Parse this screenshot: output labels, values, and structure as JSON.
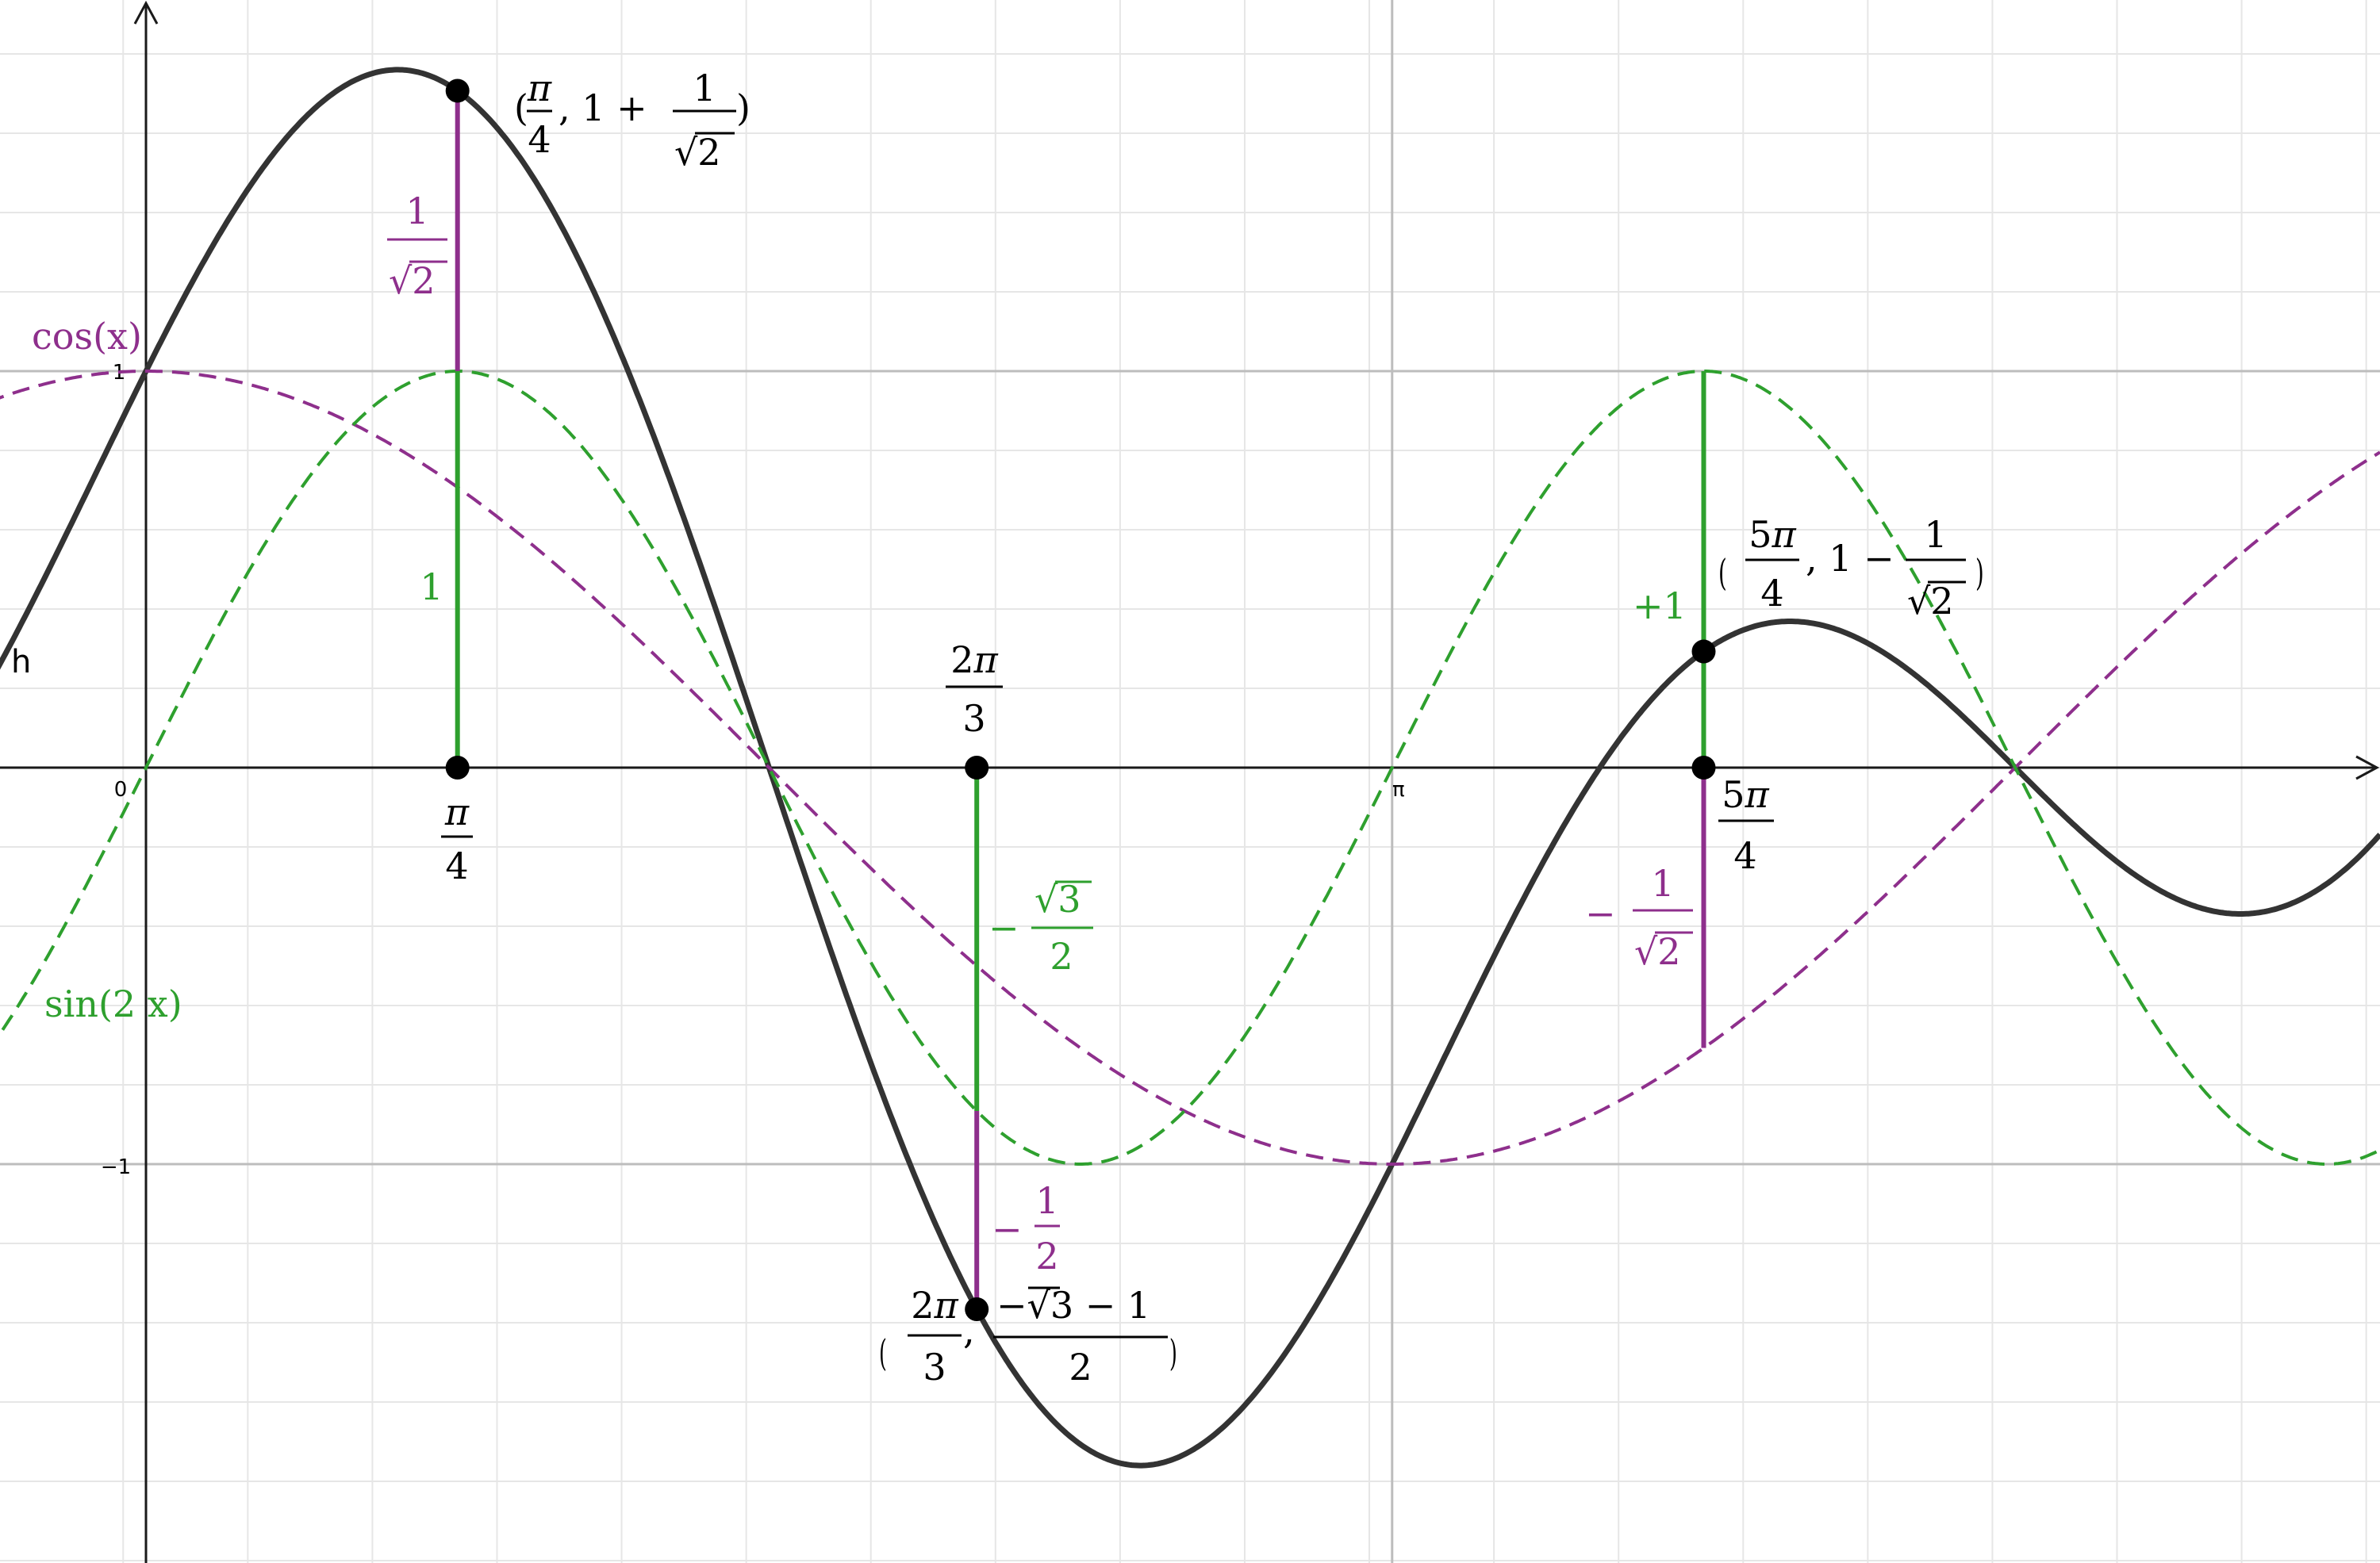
{
  "colors": {
    "h": "#333333",
    "cos": "#8e2f8c",
    "sin2x": "#2ea02e",
    "grid": "#e6e6e6",
    "unit_grid": "#bdbdbd",
    "axis": "#1a1a1a"
  },
  "chart_data": {
    "type": "line",
    "title": "",
    "xlabel": "",
    "ylabel": "",
    "xlim": [
      -0.55,
      8.4
    ],
    "ylim": [
      -2.0,
      1.95
    ],
    "grid": true,
    "x_tick_labels": [
      {
        "x": 0,
        "label": "0"
      },
      {
        "x": 3.14159,
        "label": "π"
      }
    ],
    "y_tick_labels": [
      {
        "y": 1,
        "label": "1"
      },
      {
        "y": -1,
        "label": "−1"
      }
    ],
    "series": [
      {
        "name": "h",
        "formula": "cos(x)+sin(2x)",
        "style": "solid",
        "color": "#333333",
        "x_range": [
          -0.55,
          8.4
        ]
      },
      {
        "name": "cos(x)",
        "formula": "cos(x)",
        "style": "dashed",
        "color": "#8e2f8c",
        "x_range": [
          -0.55,
          8.4
        ]
      },
      {
        "name": "sin(2x)",
        "formula": "sin(2x)",
        "style": "dashed",
        "color": "#2ea02e",
        "x_range": [
          -0.55,
          8.4
        ]
      }
    ],
    "points": [
      {
        "x": 0.7854,
        "y": 1.7071,
        "label": "(π/4, 1 + 1/√2)"
      },
      {
        "x": 0.7854,
        "y": 0,
        "label": "π/4"
      },
      {
        "x": 2.0944,
        "y": 0,
        "label": "2π/3"
      },
      {
        "x": 2.0944,
        "y": -1.366,
        "label": "(2π/3, (−√3 − 1)/2)"
      },
      {
        "x": 3.927,
        "y": 0,
        "label": "5π/4"
      },
      {
        "x": 3.927,
        "y": 0.2929,
        "label": "(5π/4, 1 − 1/√2)"
      }
    ],
    "segments": [
      {
        "x": 0.7854,
        "y1": 0,
        "y2": 1,
        "color": "#2ea02e",
        "label": "1"
      },
      {
        "x": 0.7854,
        "y1": 1,
        "y2": 1.7071,
        "color": "#8e2f8c",
        "label": "1/√2"
      },
      {
        "x": 2.0944,
        "y1": 0,
        "y2": -0.866,
        "color": "#2ea02e",
        "label": "−√3/2"
      },
      {
        "x": 2.0944,
        "y1": -0.866,
        "y2": -1.366,
        "color": "#8e2f8c",
        "label": "−1/2"
      },
      {
        "x": 3.927,
        "y1": 0,
        "y2": 1,
        "color": "#2ea02e",
        "label": "+1"
      },
      {
        "x": 3.927,
        "y1": 0,
        "y2": -0.7071,
        "color": "#8e2f8c",
        "label": "−1/√2"
      }
    ],
    "function_labels": {
      "h": "h",
      "cos": "cos(x)",
      "sin2x": "sin(2 x)"
    }
  }
}
